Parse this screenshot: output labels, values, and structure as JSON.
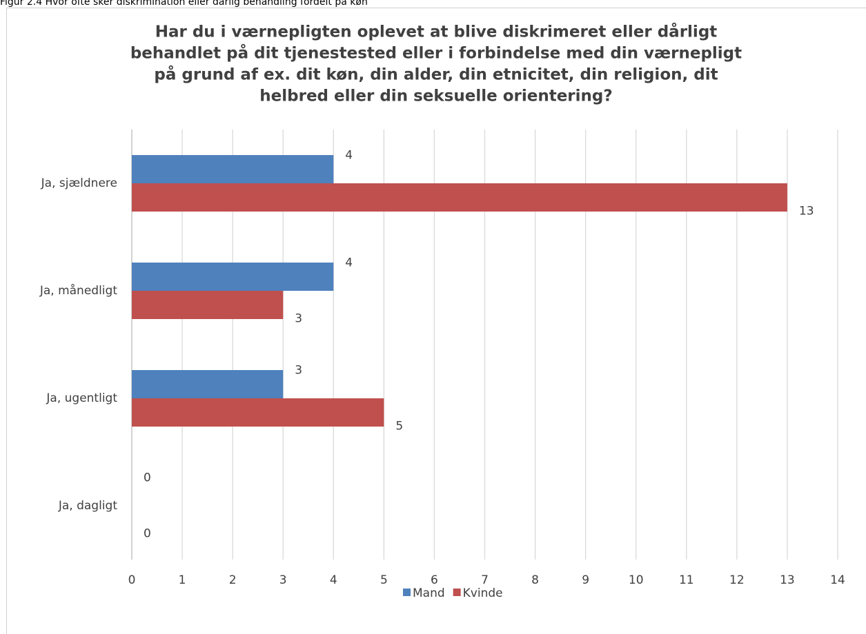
{
  "caption": "Figur 2.4 Hvor ofte sker diskrimination eller dårlig behandling fordelt på køn",
  "chart_data": {
    "type": "barh",
    "title": [
      "Har du i værnepligten oplevet at blive diskrimeret eller dårligt",
      "behandlet på dit tjenestested eller i forbindelse med din værnepligt",
      "på grund af ex. dit køn, din alder, din etnicitet, din religion, dit",
      "helbred eller din seksuelle orientering?"
    ],
    "categories": [
      "Ja, sjældnere",
      "Ja, månedligt",
      "Ja, ugentligt",
      "Ja, dagligt"
    ],
    "series": [
      {
        "name": "Mand",
        "color": "#4f81bd",
        "values": [
          4,
          4,
          3,
          0
        ]
      },
      {
        "name": "Kvinde",
        "color": "#c0504d",
        "values": [
          13,
          3,
          5,
          0
        ]
      }
    ],
    "xlim": [
      0,
      14
    ],
    "xticks": [
      0,
      1,
      2,
      3,
      4,
      5,
      6,
      7,
      8,
      9,
      10,
      11,
      12,
      13,
      14
    ],
    "grid": true,
    "legend": "bottom"
  }
}
